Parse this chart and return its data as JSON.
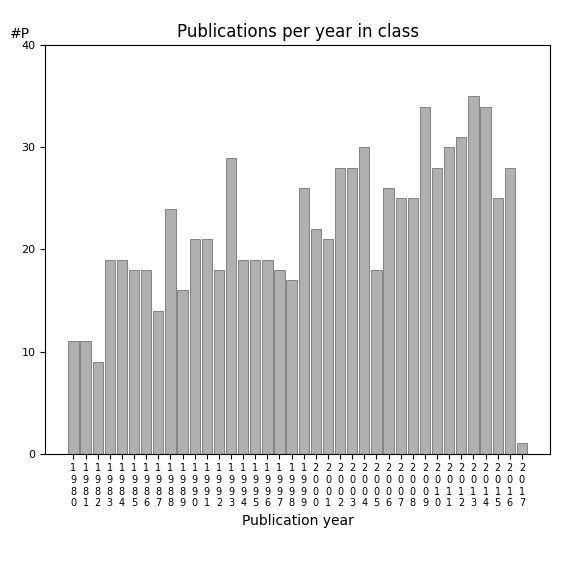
{
  "title": "Publications per year in class",
  "xlabel": "Publication year",
  "ylabel": "#P",
  "years": [
    "1980",
    "1981",
    "1982",
    "1983",
    "1984",
    "1985",
    "1986",
    "1987",
    "1988",
    "1989",
    "1990",
    "1991",
    "1992",
    "1993",
    "1994",
    "1995",
    "1996",
    "1997",
    "1998",
    "1999",
    "2000",
    "2001",
    "2002",
    "2003",
    "2004",
    "2005",
    "2006",
    "2007",
    "2008",
    "2009",
    "2010",
    "2011",
    "2012",
    "2013",
    "2014",
    "2015",
    "2016",
    "2017"
  ],
  "values": [
    11,
    11,
    9,
    19,
    19,
    18,
    18,
    14,
    24,
    16,
    21,
    21,
    18,
    29,
    19,
    19,
    19,
    18,
    17,
    26,
    22,
    21,
    28,
    28,
    30,
    18,
    26,
    25,
    25,
    34,
    28,
    30,
    31,
    35,
    34,
    25,
    28,
    1
  ],
  "bar_color": "#b0b0b0",
  "bar_edge_color": "#606060",
  "ylim": [
    0,
    40
  ],
  "yticks": [
    0,
    10,
    20,
    30,
    40
  ],
  "bg_color": "#ffffff",
  "title_fontsize": 12,
  "label_fontsize": 10,
  "tick_fontsize": 7
}
